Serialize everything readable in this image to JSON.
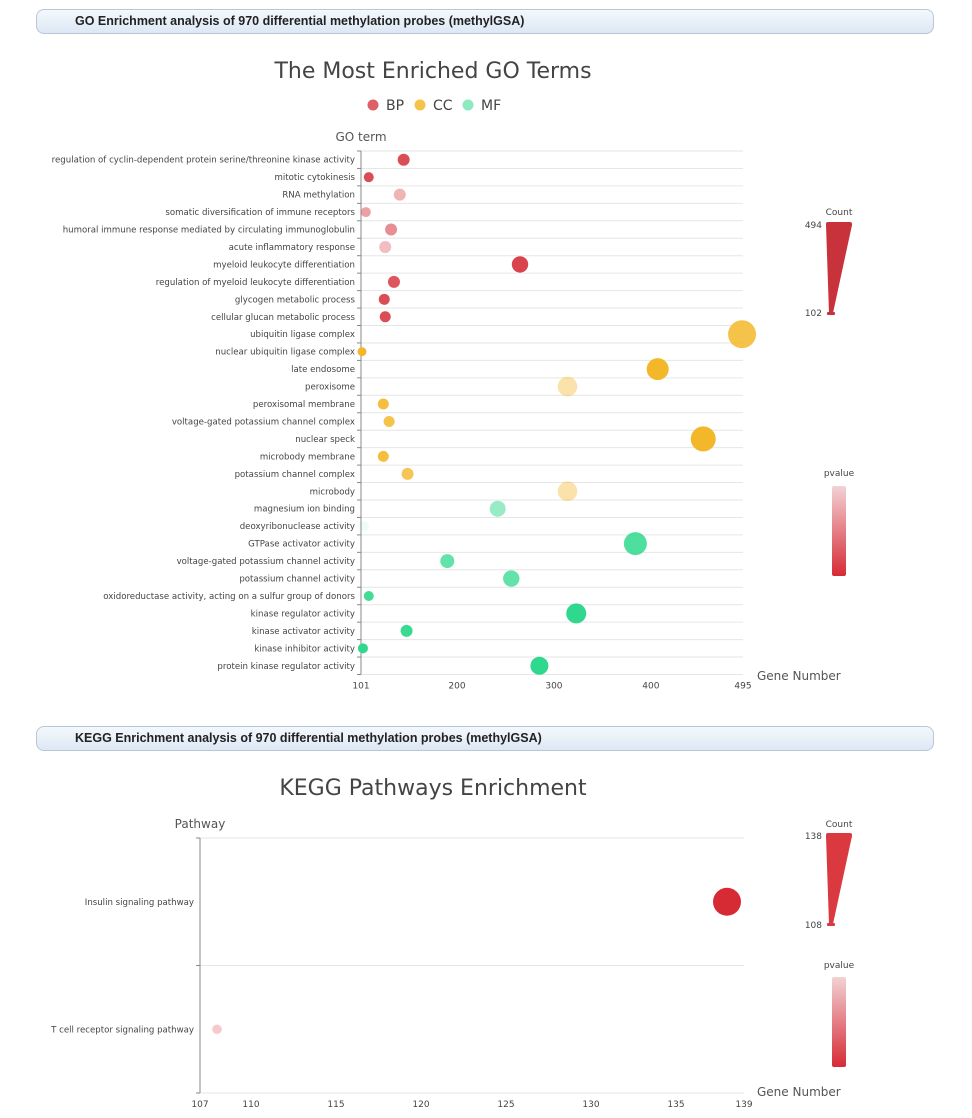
{
  "sections": {
    "go_title": "GO Enrichment analysis of 970 differential methylation probes  (methylGSA)",
    "kegg_title": "KEGG Enrichment analysis of 970 differential methylation probes  (methylGSA)"
  },
  "colors": {
    "BP": "#d9434b",
    "CC": "#f3b72a",
    "MF": "#2fd88c",
    "count_bar": "#c8323b"
  },
  "chart_data": [
    {
      "type": "scatter",
      "title": "The Most Enriched GO Terms",
      "ylabel": "GO term",
      "xlabel": "Gene Number",
      "xlim": [
        101,
        495
      ],
      "xticks": [
        "101",
        "200",
        "300",
        "400",
        "495"
      ],
      "legend": {
        "placement": "top-center",
        "items": [
          "BP",
          "CC",
          "MF"
        ]
      },
      "count_legend": {
        "label": "Count",
        "max": "494",
        "min": "102"
      },
      "pvalue_legend": {
        "label": "pvalue"
      },
      "points": [
        {
          "term": "regulation of cyclin-dependent protein serine/threonine kinase activity",
          "category": "BP",
          "x": 145,
          "size": 0.2,
          "alpha": 0.95
        },
        {
          "term": "mitotic cytokinesis",
          "category": "BP",
          "x": 109,
          "size": 0.1,
          "alpha": 0.95
        },
        {
          "term": "RNA methylation",
          "category": "BP",
          "x": 141,
          "size": 0.2,
          "alpha": 0.4
        },
        {
          "term": "somatic diversification of immune receptors",
          "category": "BP",
          "x": 106,
          "size": 0.1,
          "alpha": 0.5
        },
        {
          "term": "humoral immune response mediated by circulating immunoglobulin",
          "category": "BP",
          "x": 132,
          "size": 0.2,
          "alpha": 0.6
        },
        {
          "term": "acute inflammatory response",
          "category": "BP",
          "x": 126,
          "size": 0.2,
          "alpha": 0.35
        },
        {
          "term": "myeloid leukocyte differentiation",
          "category": "BP",
          "x": 265,
          "size": 0.42,
          "alpha": 1.0
        },
        {
          "term": "regulation of myeloid leukocyte differentiation",
          "category": "BP",
          "x": 135,
          "size": 0.2,
          "alpha": 0.9
        },
        {
          "term": "glycogen metabolic process",
          "category": "BP",
          "x": 125,
          "size": 0.15,
          "alpha": 0.95
        },
        {
          "term": "cellular glucan metabolic process",
          "category": "BP",
          "x": 126,
          "size": 0.15,
          "alpha": 0.95
        },
        {
          "term": "ubiquitin ligase complex",
          "category": "CC",
          "x": 494,
          "size": 1.0,
          "alpha": 0.85
        },
        {
          "term": "nuclear ubiquitin ligase complex",
          "category": "CC",
          "x": 102,
          "size": 0.05,
          "alpha": 1.0
        },
        {
          "term": "late endosome",
          "category": "CC",
          "x": 407,
          "size": 0.7,
          "alpha": 1.0
        },
        {
          "term": "peroxisome",
          "category": "CC",
          "x": 314,
          "size": 0.58,
          "alpha": 0.4
        },
        {
          "term": "peroxisomal membrane",
          "category": "CC",
          "x": 124,
          "size": 0.15,
          "alpha": 0.9
        },
        {
          "term": "voltage-gated potassium channel complex",
          "category": "CC",
          "x": 130,
          "size": 0.15,
          "alpha": 0.85
        },
        {
          "term": "nuclear speck",
          "category": "CC",
          "x": 454,
          "size": 0.85,
          "alpha": 1.0
        },
        {
          "term": "microbody membrane",
          "category": "CC",
          "x": 124,
          "size": 0.15,
          "alpha": 0.9
        },
        {
          "term": "potassium channel complex",
          "category": "CC",
          "x": 149,
          "size": 0.2,
          "alpha": 0.8
        },
        {
          "term": "microbody",
          "category": "CC",
          "x": 314,
          "size": 0.58,
          "alpha": 0.4
        },
        {
          "term": "magnesium ion binding",
          "category": "MF",
          "x": 242,
          "size": 0.4,
          "alpha": 0.5
        },
        {
          "term": "deoxyribonuclease activity",
          "category": "MF",
          "x": 104,
          "size": 0.1,
          "alpha": 0.08
        },
        {
          "term": "GTPase activator activity",
          "category": "MF",
          "x": 384,
          "size": 0.75,
          "alpha": 0.85
        },
        {
          "term": "voltage-gated potassium channel activity",
          "category": "MF",
          "x": 190,
          "size": 0.3,
          "alpha": 0.75
        },
        {
          "term": "potassium channel activity",
          "category": "MF",
          "x": 256,
          "size": 0.42,
          "alpha": 0.75
        },
        {
          "term": "oxidoreductase activity, acting on a sulfur group of donors",
          "category": "MF",
          "x": 109,
          "size": 0.1,
          "alpha": 0.9
        },
        {
          "term": "kinase regulator activity",
          "category": "MF",
          "x": 323,
          "size": 0.6,
          "alpha": 1.0
        },
        {
          "term": "kinase activator activity",
          "category": "MF",
          "x": 148,
          "size": 0.2,
          "alpha": 0.95
        },
        {
          "term": "kinase inhibitor activity",
          "category": "MF",
          "x": 103,
          "size": 0.1,
          "alpha": 1.0
        },
        {
          "term": "protein kinase regulator activity",
          "category": "MF",
          "x": 285,
          "size": 0.5,
          "alpha": 1.0
        }
      ]
    },
    {
      "type": "scatter",
      "title": "KEGG Pathways Enrichment",
      "ylabel": "Pathway",
      "xlabel": "Gene Number",
      "xlim": [
        107,
        139
      ],
      "xticks": [
        "107",
        "110",
        "115",
        "120",
        "125",
        "130",
        "135",
        "139"
      ],
      "count_legend": {
        "label": "Count",
        "max": "138",
        "min": "108"
      },
      "pvalue_legend": {
        "label": "pvalue"
      },
      "points": [
        {
          "term": "Insulin signaling pathway",
          "x": 138,
          "size": 1.0,
          "alpha": 1.0
        },
        {
          "term": "T cell receptor signaling pathway",
          "x": 108,
          "size": 0.08,
          "alpha": 0.25
        }
      ]
    }
  ]
}
